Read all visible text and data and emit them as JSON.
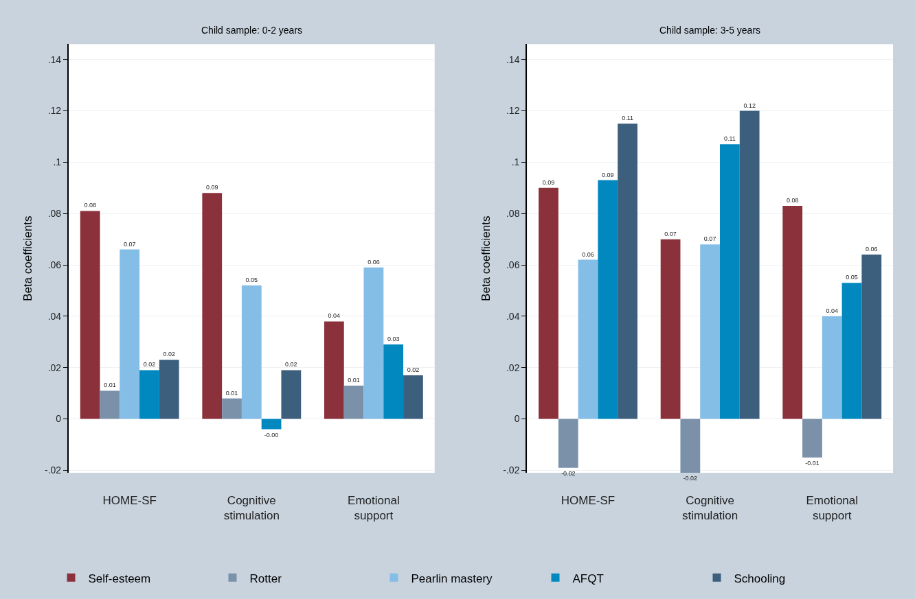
{
  "chart_data": [
    {
      "type": "bar",
      "title": "Child sample: 0-2 years",
      "ylabel": "Beta coefficients",
      "categories": [
        "HOME-SF",
        "Cognitive stimulation",
        "Emotional support"
      ],
      "ylim": [
        -0.021,
        0.146
      ],
      "yticks": [
        {
          "value": -0.02,
          "label": "-.02"
        },
        0,
        {
          "value": 0.02,
          "label": ".02"
        },
        {
          "value": 0.04,
          "label": ".04"
        },
        {
          "value": 0.06,
          "label": ".06"
        },
        {
          "value": 0.08,
          "label": ".08"
        },
        {
          "value": 0.1,
          "label": ".1"
        },
        {
          "value": 0.12,
          "label": ".12"
        },
        {
          "value": 0.14,
          "label": ".14"
        }
      ],
      "grid": "y",
      "legend": "bottom",
      "series": [
        {
          "name": "Self-esteem",
          "color": "#8b313b",
          "values": [
            0.081,
            0.088,
            0.038
          ],
          "value_labels": [
            "0.08",
            "0.09",
            "0.04"
          ]
        },
        {
          "name": "Rotter",
          "color": "#7b91aa",
          "values": [
            0.011,
            0.008,
            0.013
          ],
          "value_labels": [
            "0.01",
            "0.01",
            "0.01"
          ]
        },
        {
          "name": "Pearlin mastery",
          "color": "#84bde6",
          "values": [
            0.066,
            0.052,
            0.059
          ],
          "value_labels": [
            "0.07",
            "0.05",
            "0.06"
          ]
        },
        {
          "name": "AFQT",
          "color": "#0088bf",
          "values": [
            0.019,
            -0.004,
            0.029
          ],
          "value_labels": [
            "0.02",
            "-0.00",
            "0.03"
          ]
        },
        {
          "name": "Schooling",
          "color": "#3c5f7d",
          "values": [
            0.023,
            0.019,
            0.017
          ],
          "value_labels": [
            "0.02",
            "0.02",
            "0.02"
          ]
        }
      ]
    },
    {
      "type": "bar",
      "title": "Child sample: 3-5 years",
      "ylabel": "Beta coefficients",
      "categories": [
        "HOME-SF",
        "Cognitive stimulation",
        "Emotional support"
      ],
      "ylim": [
        -0.021,
        0.146
      ],
      "yticks": [
        {
          "value": -0.02,
          "label": "-.02"
        },
        0,
        {
          "value": 0.02,
          "label": ".02"
        },
        {
          "value": 0.04,
          "label": ".04"
        },
        {
          "value": 0.06,
          "label": ".06"
        },
        {
          "value": 0.08,
          "label": ".08"
        },
        {
          "value": 0.1,
          "label": ".1"
        },
        {
          "value": 0.12,
          "label": ".12"
        },
        {
          "value": 0.14,
          "label": ".14"
        }
      ],
      "grid": "y",
      "legend": "bottom",
      "series": [
        {
          "name": "Self-esteem",
          "color": "#8b313b",
          "values": [
            0.09,
            0.07,
            0.083
          ],
          "value_labels": [
            "0.09",
            "0.07",
            "0.08"
          ]
        },
        {
          "name": "Rotter",
          "color": "#7b91aa",
          "values": [
            -0.019,
            -0.021,
            -0.015
          ],
          "value_labels": [
            "-0.02",
            "-0.02",
            "-0.01"
          ]
        },
        {
          "name": "Pearlin mastery",
          "color": "#84bde6",
          "values": [
            0.062,
            0.068,
            0.04
          ],
          "value_labels": [
            "0.06",
            "0.07",
            "0.04"
          ]
        },
        {
          "name": "AFQT",
          "color": "#0088bf",
          "values": [
            0.093,
            0.107,
            0.053
          ],
          "value_labels": [
            "0.09",
            "0.11",
            "0.05"
          ]
        },
        {
          "name": "Schooling",
          "color": "#3c5f7d",
          "values": [
            0.115,
            0.12,
            0.064
          ],
          "value_labels": [
            "0.11",
            "0.12",
            "0.06"
          ]
        }
      ]
    }
  ]
}
